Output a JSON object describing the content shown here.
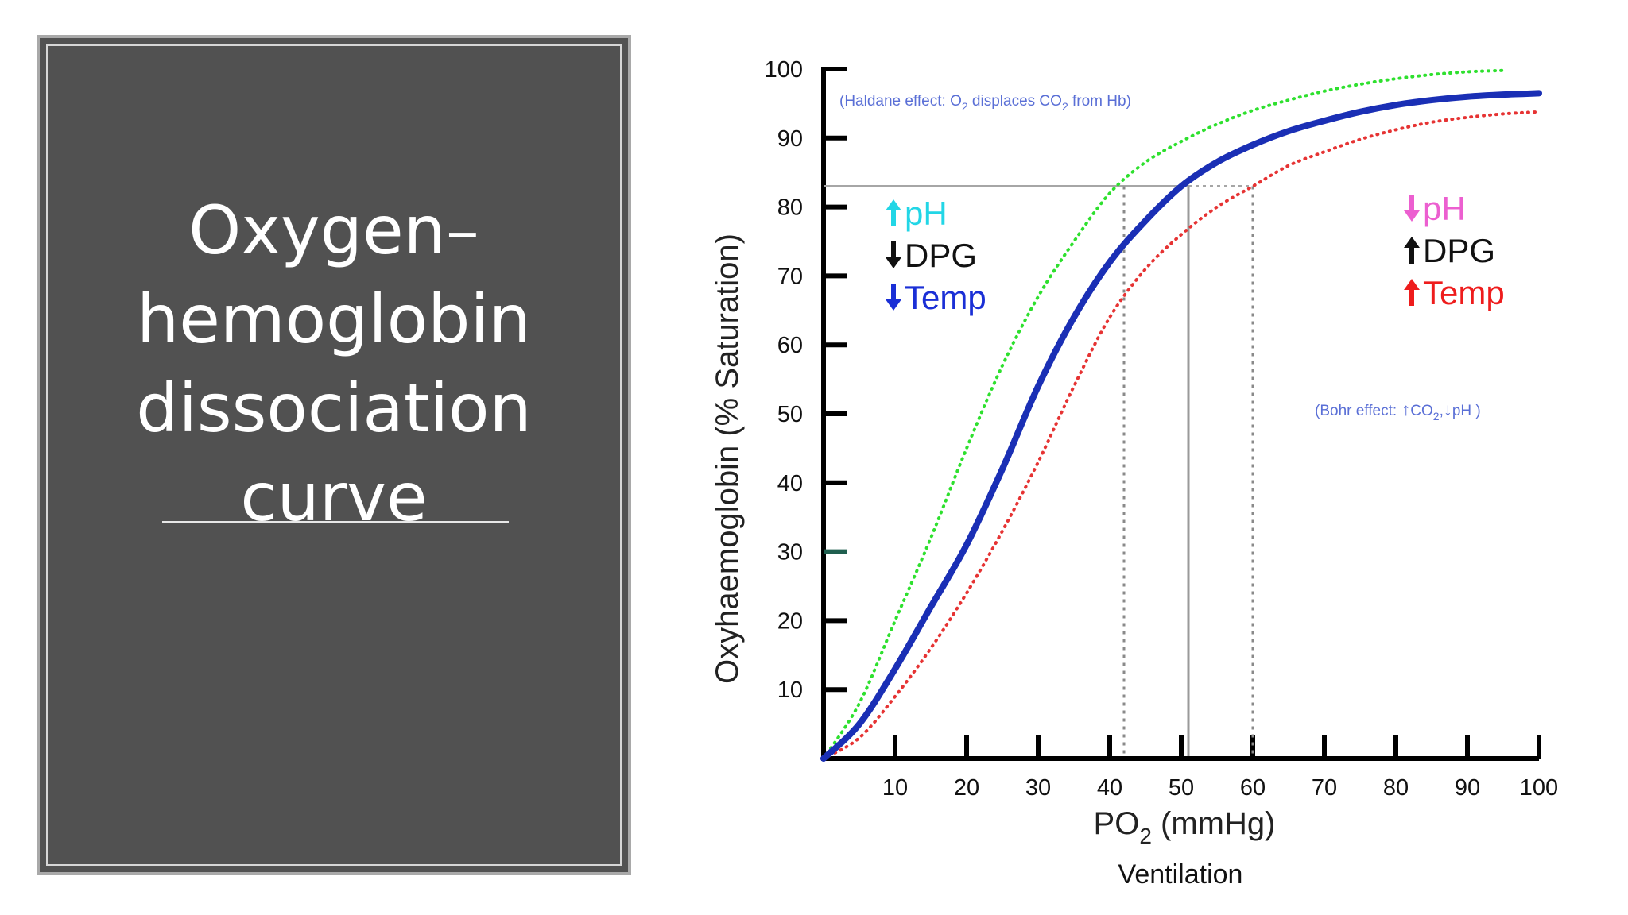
{
  "slide": {
    "title": "Oxygen–\nhemoglobin\ndissociation\ncurve",
    "footer": "Ventilation"
  },
  "chart_data": {
    "type": "line",
    "xlabel_main": "PO",
    "xlabel_sub": "2",
    "xlabel_unit": " (mmHg)",
    "ylabel": "Oxyhaemoglobin (% Saturation)",
    "xlim": [
      0,
      100
    ],
    "ylim": [
      0,
      100
    ],
    "x_ticks": [
      10,
      20,
      30,
      40,
      50,
      60,
      70,
      80,
      90,
      100
    ],
    "y_ticks": [
      10,
      20,
      30,
      40,
      50,
      60,
      70,
      80,
      90,
      100
    ],
    "grid": false,
    "series": [
      {
        "color": "#1a2fb5",
        "style": "solid",
        "x": [
          0,
          5,
          10,
          15,
          20,
          25,
          30,
          35,
          40,
          45,
          50,
          55,
          60,
          65,
          70,
          75,
          80,
          85,
          90,
          95,
          100
        ],
        "y": [
          0,
          5,
          13,
          22,
          31,
          42,
          54,
          64,
          72,
          78,
          83,
          86.5,
          89,
          91,
          92.5,
          93.8,
          94.8,
          95.5,
          96,
          96.3,
          96.5
        ]
      },
      {
        "color": "#2ee02e",
        "style": "dotted",
        "x": [
          0,
          5,
          10,
          15,
          20,
          25,
          30,
          35,
          40,
          45,
          50,
          55,
          60,
          65,
          70,
          75,
          80,
          85,
          90,
          95
        ],
        "y": [
          0,
          8,
          20,
          32,
          45,
          57,
          67,
          75,
          82,
          86.5,
          89.5,
          92,
          94,
          95.5,
          96.8,
          97.8,
          98.6,
          99.2,
          99.6,
          99.8
        ]
      },
      {
        "color": "#e63333",
        "style": "dotted",
        "x": [
          0,
          5,
          10,
          15,
          20,
          25,
          30,
          35,
          40,
          45,
          50,
          55,
          60,
          65,
          70,
          75,
          80,
          85,
          90,
          95,
          100
        ],
        "y": [
          0,
          3,
          9,
          16,
          24,
          33,
          43,
          54,
          64,
          71,
          76,
          80,
          83,
          86,
          88,
          89.8,
          91.2,
          92.3,
          93,
          93.5,
          93.8
        ]
      }
    ],
    "reference_lines": {
      "saturation": 83,
      "po2_values": [
        42,
        51,
        60
      ]
    },
    "annotations": {
      "haldane": {
        "prefix": "(Haldane effect: O",
        "o2_sub": "2",
        "middle": " displaces CO",
        "co2_sub": "2",
        "suffix": " from Hb)",
        "color": "#5a6fd6"
      },
      "bohr": {
        "prefix": "(Bohr effect:",
        "co2": "CO",
        "co2_sub": "2",
        "sep": ",",
        "ph": "pH )",
        "color": "#5a6fd6"
      },
      "left_factors": [
        {
          "text": "pH",
          "arrow": "up",
          "text_color": "#22d6e6",
          "arrow_color": "#22d6e6"
        },
        {
          "text": "DPG",
          "arrow": "down",
          "text_color": "#111111",
          "arrow_color": "#111111"
        },
        {
          "text": "Temp",
          "arrow": "down",
          "text_color": "#1a2fd6",
          "arrow_color": "#1a2fd6"
        }
      ],
      "right_factors": [
        {
          "text": "pH",
          "arrow": "down",
          "text_color": "#ec5fd0",
          "arrow_color": "#ec5fd0"
        },
        {
          "text": "DPG",
          "arrow": "up",
          "text_color": "#111111",
          "arrow_color": "#111111"
        },
        {
          "text": "Temp",
          "arrow": "up",
          "text_color": "#ee1c1c",
          "arrow_color": "#ee1c1c"
        }
      ]
    }
  }
}
